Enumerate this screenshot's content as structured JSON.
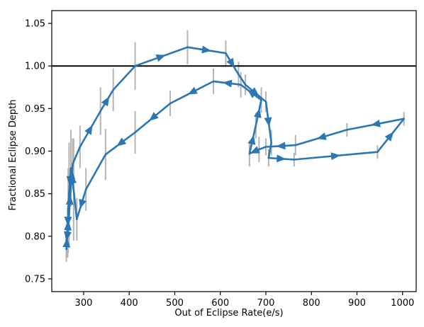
{
  "chart_data": {
    "type": "line",
    "title": "",
    "xlabel": "Out of Eclipse Rate(e/s)",
    "ylabel": "Fractional Eclipse Depth",
    "xlim": [
      230,
      1030
    ],
    "ylim": [
      0.735,
      1.065
    ],
    "xticks": [
      300,
      400,
      500,
      600,
      700,
      800,
      900,
      1000
    ],
    "yticks": [
      0.75,
      0.8,
      0.85,
      0.9,
      0.95,
      1.0,
      1.05
    ],
    "xtick_labels": [
      "300",
      "400",
      "500",
      "600",
      "700",
      "800",
      "900",
      "1000"
    ],
    "ytick_labels": [
      "0.75",
      "0.80",
      "0.85",
      "0.90",
      "0.95",
      "1.00",
      "1.05"
    ],
    "reference_line": {
      "y": 1.0,
      "color": "#000000"
    },
    "grid": false,
    "line_color": "#2a77b4",
    "errorbar_color": "#b4b4b4",
    "series": [
      {
        "points": [
          {
            "x": 262,
            "y": 0.785,
            "err": 0.015
          },
          {
            "x": 264,
            "y": 0.8,
            "err": 0.02
          },
          {
            "x": 268,
            "y": 0.825,
            "err": 0.025
          },
          {
            "x": 272,
            "y": 0.86,
            "err": 0.025
          },
          {
            "x": 276,
            "y": 0.885,
            "err": 0.03
          },
          {
            "x": 292,
            "y": 0.905,
            "err": 0.025
          },
          {
            "x": 337,
            "y": 0.947,
            "err": 0.028
          },
          {
            "x": 365,
            "y": 0.972,
            "err": 0.025
          },
          {
            "x": 413,
            "y": 1.0,
            "err": 0.028
          },
          {
            "x": 528,
            "y": 1.022,
            "err": 0.02
          },
          {
            "x": 612,
            "y": 1.015,
            "err": 0.015
          },
          {
            "x": 640,
            "y": 0.99,
            "err": 0.015
          },
          {
            "x": 655,
            "y": 0.978,
            "err": 0.012
          },
          {
            "x": 700,
            "y": 0.958,
            "err": 0.012
          },
          {
            "x": 712,
            "y": 0.91,
            "err": 0.015
          },
          {
            "x": 706,
            "y": 0.892,
            "err": 0.01
          },
          {
            "x": 762,
            "y": 0.89,
            "err": 0.008
          },
          {
            "x": 945,
            "y": 0.899,
            "err": 0.008
          },
          {
            "x": 1003,
            "y": 0.938,
            "err": 0.008
          },
          {
            "x": 878,
            "y": 0.925,
            "err": 0.008
          },
          {
            "x": 765,
            "y": 0.907,
            "err": 0.012
          },
          {
            "x": 700,
            "y": 0.905,
            "err": 0.01
          },
          {
            "x": 685,
            "y": 0.902,
            "err": 0.015
          },
          {
            "x": 664,
            "y": 0.897,
            "err": 0.015
          },
          {
            "x": 678,
            "y": 0.93,
            "err": 0.015
          },
          {
            "x": 690,
            "y": 0.96,
            "err": 0.015
          },
          {
            "x": 645,
            "y": 0.978,
            "err": 0.015
          },
          {
            "x": 585,
            "y": 0.982,
            "err": 0.015
          },
          {
            "x": 490,
            "y": 0.956,
            "err": 0.015
          },
          {
            "x": 413,
            "y": 0.922,
            "err": 0.025
          },
          {
            "x": 348,
            "y": 0.896,
            "err": 0.03
          },
          {
            "x": 305,
            "y": 0.855,
            "err": 0.025
          },
          {
            "x": 285,
            "y": 0.82,
            "err": 0.025
          },
          {
            "x": 278,
            "y": 0.855,
            "err": 0.06
          },
          {
            "x": 272,
            "y": 0.88,
            "err": 0.045
          },
          {
            "x": 268,
            "y": 0.85,
            "err": 0.06
          },
          {
            "x": 266,
            "y": 0.83,
            "err": 0.05
          },
          {
            "x": 265,
            "y": 0.805,
            "err": 0.03
          },
          {
            "x": 262,
            "y": 0.795,
            "err": 0.02
          }
        ]
      }
    ],
    "arrow_positions": [
      [
        0,
        1
      ],
      [
        1,
        2
      ],
      [
        2,
        3
      ],
      [
        3,
        4
      ],
      [
        5,
        6
      ],
      [
        6,
        7
      ],
      [
        8,
        9
      ],
      [
        9,
        10
      ],
      [
        10,
        11
      ],
      [
        12,
        13
      ],
      [
        13,
        14
      ],
      [
        15,
        16
      ],
      [
        16,
        17
      ],
      [
        17,
        18
      ],
      [
        18,
        19
      ],
      [
        19,
        20
      ],
      [
        20,
        21
      ],
      [
        22,
        23
      ],
      [
        23,
        24
      ],
      [
        24,
        25
      ],
      [
        25,
        26
      ],
      [
        26,
        27
      ],
      [
        27,
        28
      ],
      [
        28,
        29
      ],
      [
        29,
        30
      ],
      [
        31,
        32
      ],
      [
        33,
        34
      ],
      [
        34,
        35
      ],
      [
        36,
        37
      ],
      [
        37,
        38
      ]
    ]
  }
}
